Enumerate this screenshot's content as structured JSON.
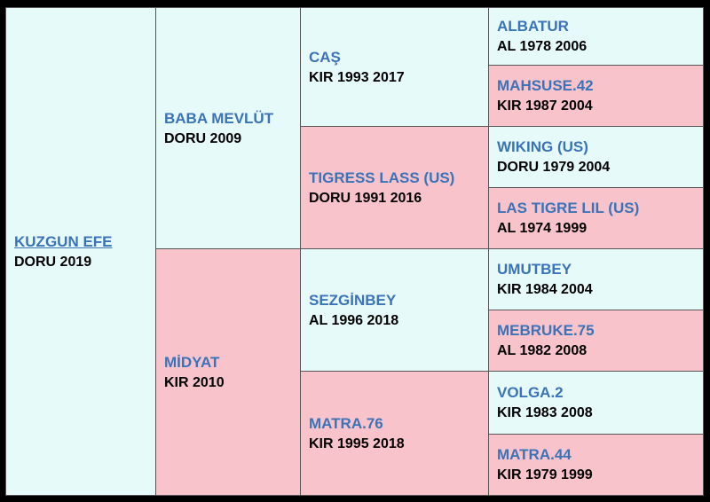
{
  "subject": {
    "name": "KUZGUN EFE",
    "info": "DORU 2019"
  },
  "sire": {
    "name": "BABA MEVLÜT",
    "info": "DORU 2009"
  },
  "dam": {
    "name": "MİDYAT",
    "info": "KIR 2010"
  },
  "sire_sire": {
    "name": "CAŞ",
    "info": "KIR 1993 2017"
  },
  "sire_dam": {
    "name": "TIGRESS LASS (US)",
    "info": "DORU 1991 2016"
  },
  "dam_sire": {
    "name": "SEZGİNBEY",
    "info": "AL 1996 2018"
  },
  "dam_dam": {
    "name": "MATRA.76",
    "info": "KIR 1995 2018"
  },
  "sss": {
    "name": "ALBATUR",
    "info": "AL 1978 2006"
  },
  "ssd": {
    "name": "MAHSUSE.42",
    "info": "KIR 1987 2004"
  },
  "sds": {
    "name": "WIKING (US)",
    "info": "DORU 1979 2004"
  },
  "sdd": {
    "name": "LAS TIGRE LIL (US)",
    "info": "AL 1974 1999"
  },
  "dss": {
    "name": "UMUTBEY",
    "info": "KIR 1984 2004"
  },
  "dsd": {
    "name": "MEBRUKE.75",
    "info": "AL 1982 2008"
  },
  "dds": {
    "name": "VOLGA.2",
    "info": "KIR 1983 2008"
  },
  "ddd": {
    "name": "MATRA.44",
    "info": "KIR 1979 1999"
  },
  "colors": {
    "male_bg": "#e6fafa",
    "female_bg": "#f9c3cc",
    "name_text": "#3a73b8",
    "info_text": "#000000",
    "grid_border": "#000000"
  }
}
